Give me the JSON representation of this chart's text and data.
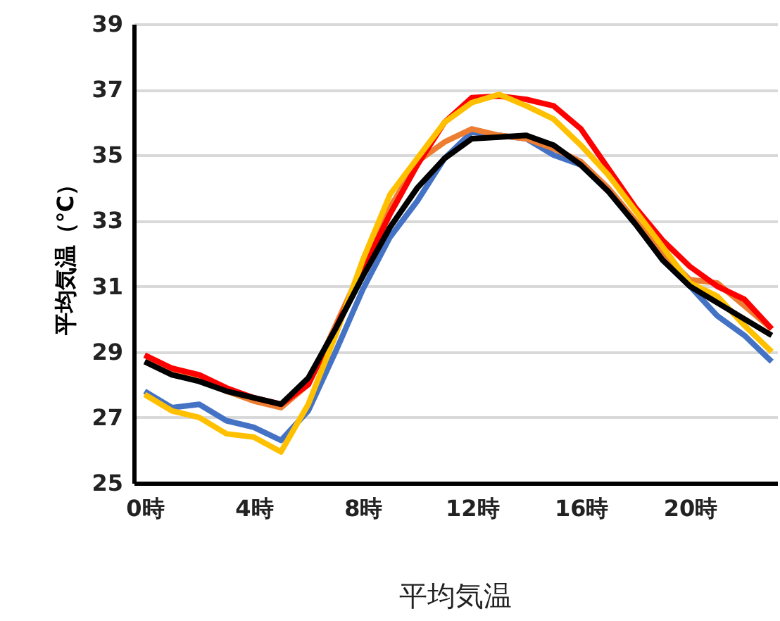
{
  "chart_data": {
    "type": "line",
    "title": "平均気温",
    "ylabel": "平均気温（℃）",
    "x": [
      0,
      1,
      2,
      3,
      4,
      5,
      6,
      7,
      8,
      9,
      10,
      11,
      12,
      13,
      14,
      15,
      16,
      17,
      18,
      19,
      20,
      21,
      22,
      23
    ],
    "xlim": [
      -0.4,
      23.2
    ],
    "xticks": [
      {
        "value": 0,
        "label": "0時"
      },
      {
        "value": 4,
        "label": "4時"
      },
      {
        "value": 8,
        "label": "8時"
      },
      {
        "value": 12,
        "label": "12時"
      },
      {
        "value": 16,
        "label": "16時"
      },
      {
        "value": 20,
        "label": "20時"
      }
    ],
    "ylim": [
      25,
      39
    ],
    "yticks": [
      25,
      27,
      29,
      31,
      33,
      35,
      37,
      39
    ],
    "grid": "y",
    "line_style": "solid",
    "series": [
      {
        "color": "#4472c4",
        "values": [
          27.8,
          27.3,
          27.4,
          26.9,
          26.7,
          26.3,
          27.2,
          29.0,
          30.9,
          32.5,
          33.6,
          34.9,
          35.7,
          35.6,
          35.5,
          35.0,
          34.7,
          33.9,
          32.9,
          31.8,
          31.0,
          30.1,
          29.5,
          28.7
        ]
      },
      {
        "color": "#ed7d31",
        "values": [
          28.9,
          28.4,
          28.2,
          27.8,
          27.5,
          27.3,
          28.0,
          29.8,
          31.6,
          33.4,
          34.8,
          35.4,
          35.8,
          35.6,
          35.5,
          35.2,
          34.8,
          34.0,
          33.0,
          32.0,
          31.2,
          31.1,
          30.4,
          29.7
        ]
      },
      {
        "color": "#ff0000",
        "values": [
          28.9,
          28.5,
          28.3,
          27.9,
          27.6,
          27.4,
          28.0,
          29.7,
          31.5,
          33.2,
          34.7,
          36.0,
          36.75,
          36.8,
          36.7,
          36.5,
          35.8,
          34.6,
          33.4,
          32.4,
          31.6,
          31.0,
          30.6,
          29.7
        ]
      },
      {
        "color": "#ffc000",
        "values": [
          27.7,
          27.2,
          27.0,
          26.5,
          26.4,
          25.95,
          27.4,
          29.5,
          31.8,
          33.8,
          34.9,
          36.0,
          36.6,
          36.85,
          36.5,
          36.1,
          35.3,
          34.4,
          33.3,
          32.2,
          31.1,
          30.7,
          29.8,
          29.0
        ]
      },
      {
        "color": "#000000",
        "values": [
          28.7,
          28.3,
          28.1,
          27.8,
          27.6,
          27.4,
          28.2,
          29.7,
          31.3,
          32.8,
          34.0,
          34.9,
          35.5,
          35.55,
          35.6,
          35.3,
          34.7,
          33.9,
          32.9,
          31.8,
          31.0,
          30.5,
          30.0,
          29.5
        ]
      }
    ]
  }
}
